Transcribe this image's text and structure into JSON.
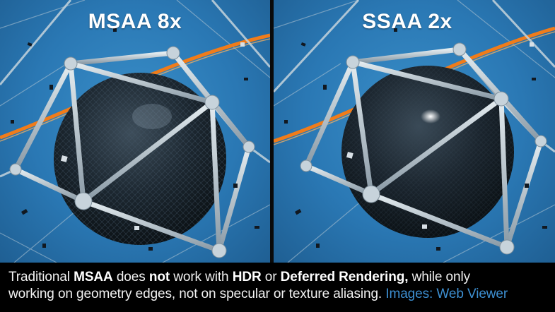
{
  "panels": [
    {
      "title": "MSAA 8x"
    },
    {
      "title": "SSAA 2x"
    }
  ],
  "caption": {
    "line1": {
      "t1": "Traditional ",
      "b1": "MSAA",
      "t2": " does ",
      "b2": "not",
      "t3": " work with ",
      "b3": "HDR",
      "t4": " or ",
      "b4": "Deferred Rendering,",
      "t5": " while only"
    },
    "line2": {
      "t1": "working on geometry edges, not on specular or texture aliasing. ",
      "credit": "Images: Web Viewer"
    }
  },
  "colors": {
    "background": "#2a78b4",
    "orange_ring": "#f07c1a",
    "sphere": "#1b262f",
    "frame": "#b9c6cf",
    "credit": "#3d8fd1"
  }
}
